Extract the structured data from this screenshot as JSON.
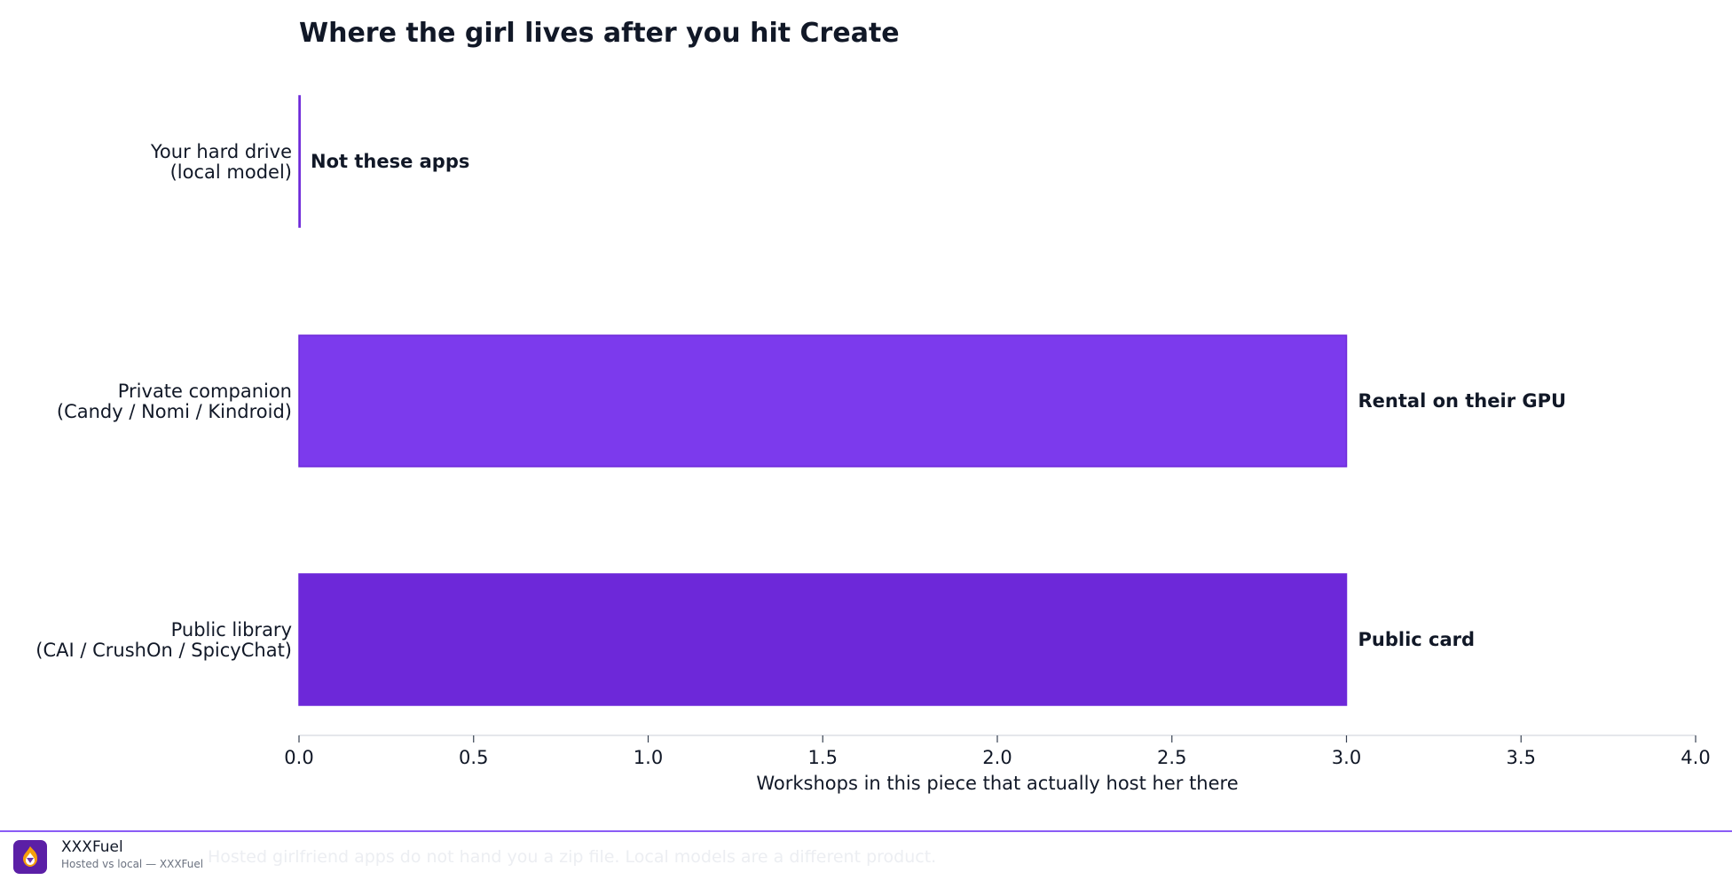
{
  "chart_data": {
    "type": "bar",
    "orientation": "horizontal",
    "title": "Where the girl lives after you hit Create",
    "xlabel": "Workshops in this piece that actually host her there",
    "ylabel": "",
    "xlim": [
      0,
      4
    ],
    "xticks": [
      "0.0",
      "0.5",
      "1.0",
      "1.5",
      "2.0",
      "2.5",
      "3.0",
      "3.5",
      "4.0"
    ],
    "categories": [
      [
        "Your hard drive",
        "(local model)"
      ],
      [
        "Private companion",
        "(Candy / Nomi / Kindroid)"
      ],
      [
        "Public library",
        "(CAI / CrushOn / SpicyChat)"
      ]
    ],
    "values": [
      0,
      3,
      3
    ],
    "bar_labels": [
      "Not these apps",
      "Rental on their GPU",
      "Public card"
    ],
    "colors": [
      "#7c3aed",
      "#7c3aed",
      "#6d28d9"
    ],
    "grid": false
  },
  "footer": {
    "brand": "XXXFuel",
    "tagline": "Hosted vs local — XXXFuel",
    "note": "Hosted girlfriend apps do not hand you a zip file. Local models are a different product."
  },
  "colors": {
    "accent": "#8b5cf6",
    "logo_bg": "#5b1fa6",
    "logo_flame": "#f59e0b"
  },
  "icons": {
    "logo": "flame-shield-icon"
  }
}
